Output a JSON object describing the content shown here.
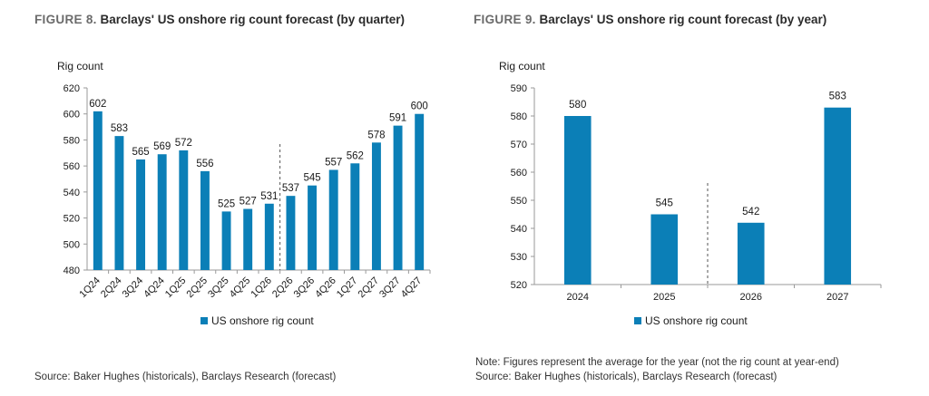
{
  "figure8": {
    "number": "FIGURE 8.",
    "title": "Barclays' US onshore rig count forecast (by quarter)",
    "source": "Source: Baker Hughes (historicals), Barclays Research (forecast)"
  },
  "figure9": {
    "number": "FIGURE 9.",
    "title": "Barclays' US onshore rig count forecast (by year)",
    "note": "Note: Figures represent the average for the year (not the rig count at year-end)",
    "source": "Source: Baker Hughes (historicals), Barclays Research (forecast)"
  },
  "colors": {
    "bar": "#0b7fb7",
    "axis": "#9a9a9a",
    "text": "#1a1a1a"
  },
  "chart_data": [
    {
      "type": "bar",
      "title": "Barclays' US onshore rig count forecast (by quarter)",
      "ylabel": "Rig count",
      "xlabel": "",
      "ylim": [
        480,
        620
      ],
      "yticks": [
        480,
        500,
        520,
        540,
        560,
        580,
        600,
        620
      ],
      "categories": [
        "1Q24",
        "2Q24",
        "3Q24",
        "4Q24",
        "1Q25",
        "2Q25",
        "3Q25",
        "4Q25",
        "1Q26",
        "2Q26",
        "3Q26",
        "4Q26",
        "1Q27",
        "2Q27",
        "3Q27",
        "4Q27"
      ],
      "series": [
        {
          "name": "US onshore rig count",
          "values": [
            602,
            583,
            565,
            569,
            572,
            556,
            525,
            527,
            531,
            537,
            545,
            557,
            562,
            578,
            591,
            600
          ]
        }
      ],
      "divider_between": [
        "1Q26",
        "2Q26"
      ],
      "legend": "bottom",
      "grid": false
    },
    {
      "type": "bar",
      "title": "Barclays' US onshore rig count forecast (by year)",
      "ylabel": "Rig count",
      "xlabel": "",
      "ylim": [
        520,
        590
      ],
      "yticks": [
        520,
        530,
        540,
        550,
        560,
        570,
        580,
        590
      ],
      "categories": [
        "2024",
        "2025",
        "2026",
        "2027"
      ],
      "series": [
        {
          "name": "US onshore rig count",
          "values": [
            580,
            545,
            542,
            583
          ]
        }
      ],
      "divider_between": [
        "2025",
        "2026"
      ],
      "legend": "bottom",
      "grid": false
    }
  ]
}
